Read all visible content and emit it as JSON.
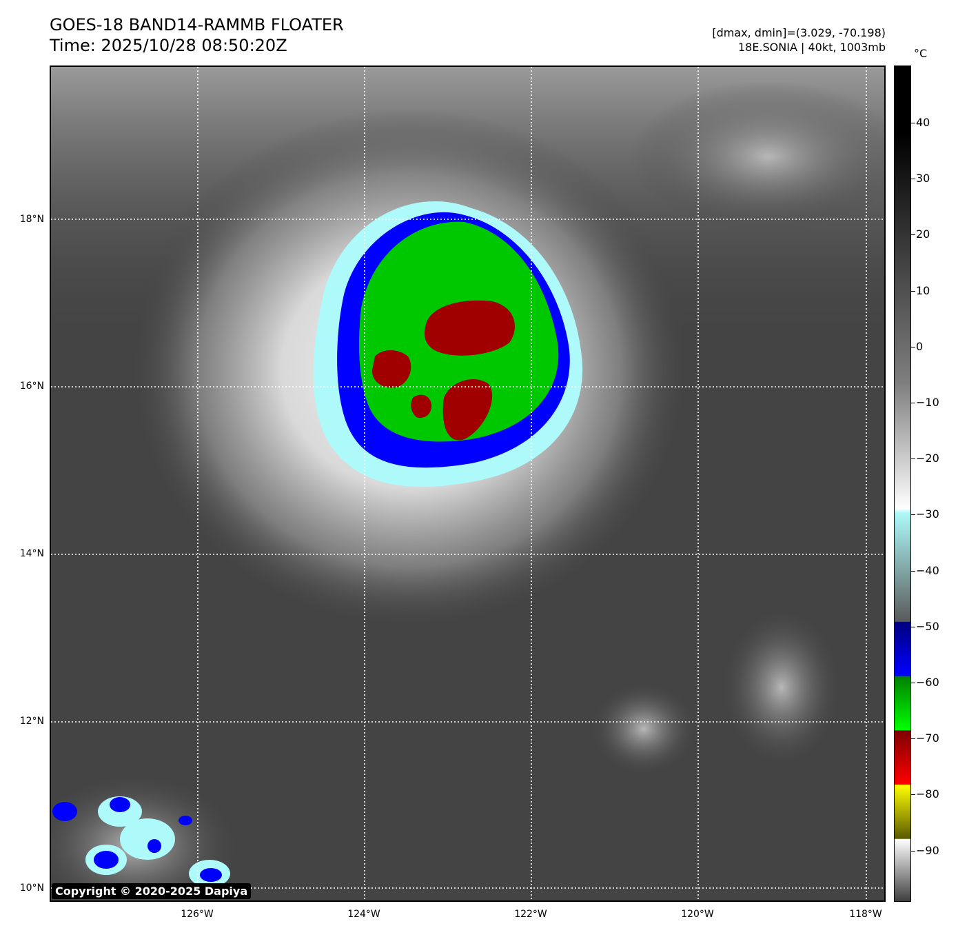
{
  "header": {
    "title": "GOES-18 BAND14-RAMMB FLOATER",
    "time": "Time: 2025/10/28 08:50:20Z",
    "dmax_dmin": "[dmax, dmin]=(3.029, -70.198)",
    "storm": "18E.SONIA | 40kt, 1003mb"
  },
  "map": {
    "lat_labels": [
      "18°N",
      "16°N",
      "14°N",
      "12°N",
      "10°N"
    ],
    "lon_labels": [
      "126°W",
      "124°W",
      "122°W",
      "120°W",
      "118°W"
    ],
    "copyright": "Copyright © 2020-2025 Dapiya"
  },
  "colorbar": {
    "unit": "°C",
    "labels": [
      "40",
      "30",
      "20",
      "10",
      "0",
      "−10",
      "−20",
      "−30",
      "−40",
      "−50",
      "−60",
      "−70",
      "−80",
      "−90"
    ],
    "colors": {
      "warm": "#000000",
      "mid_gray": "#7f7f7f",
      "white": "#ffffff",
      "cyan": "#aef9f9",
      "blue": "#0000ff",
      "green": "#00ff00",
      "red": "#ff0000",
      "yellow": "#ffff00"
    }
  }
}
